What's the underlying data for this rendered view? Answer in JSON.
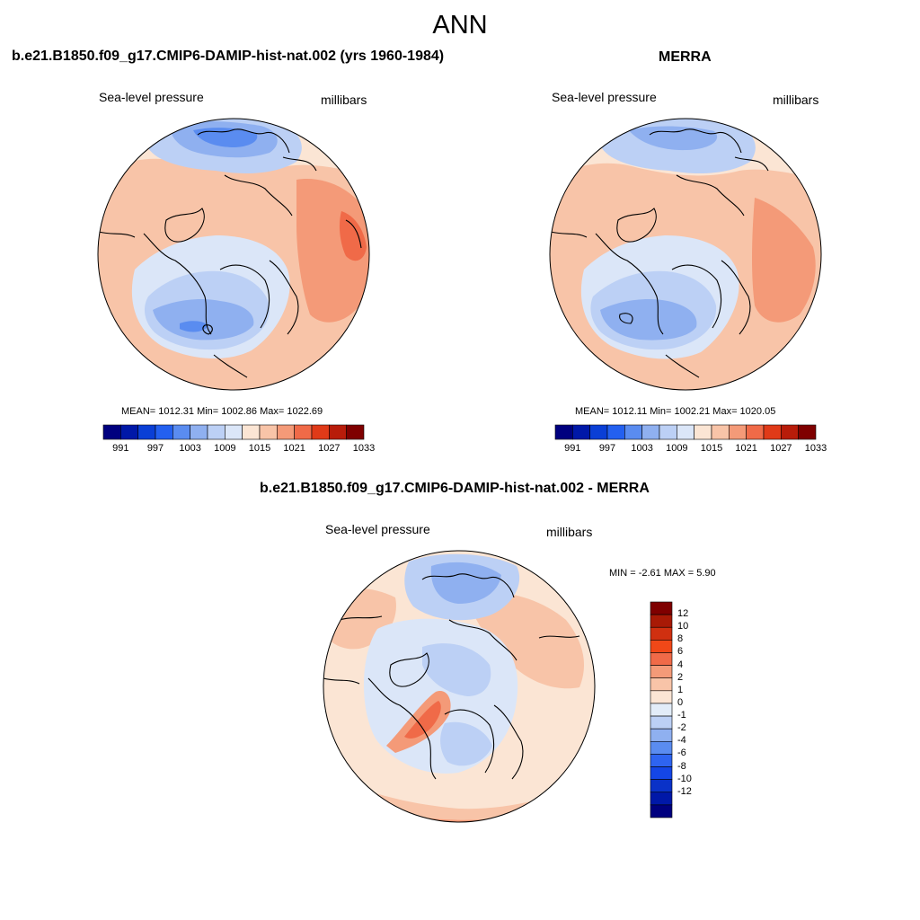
{
  "title": "ANN",
  "panels": [
    {
      "title": "b.e21.B1850.f09_g17.CMIP6-DAMIP-hist-nat.002 (yrs 1960-1984)",
      "left_label": "Sea-level pressure",
      "right_label": "millibars",
      "stats": "MEAN= 1012.31  Min= 1002.86  Max= 1022.69"
    },
    {
      "title": "MERRA",
      "left_label": "Sea-level pressure",
      "right_label": "millibars",
      "stats": "MEAN= 1012.11  Min= 1002.21  Max= 1020.05"
    },
    {
      "title": "b.e21.B1850.f09_g17.CMIP6-DAMIP-hist-nat.002 - MERRA",
      "left_label": "Sea-level pressure",
      "right_label": "millibars",
      "stats": "MIN =  -2.61 MAX =   5.90"
    }
  ],
  "colorbar_abs": {
    "colors": [
      "#00007f",
      "#0018a8",
      "#0a3fd6",
      "#2360f0",
      "#5a8cf0",
      "#8fb0f0",
      "#bcd0f5",
      "#dbe6f8",
      "#fbe5d4",
      "#f8c4a8",
      "#f49a78",
      "#f06a48",
      "#e03a18",
      "#b81c0a",
      "#7f0000"
    ],
    "tick_labels": [
      "991",
      "997",
      "1003",
      "1009",
      "1015",
      "1021",
      "1027",
      "1033"
    ]
  },
  "colorbar_diff": {
    "colors": [
      "#00007f",
      "#0018a8",
      "#0a32c8",
      "#1446e6",
      "#2e64f0",
      "#5a8cf0",
      "#8fb0f0",
      "#bcd0f5",
      "#e2ecf8",
      "#fbe5d4",
      "#f8c4a8",
      "#f49a78",
      "#f06a48",
      "#f04818",
      "#d03010",
      "#a81a06",
      "#7f0000"
    ],
    "tick_labels": [
      "12",
      "10",
      "8",
      "6",
      "4",
      "2",
      "1",
      "0",
      "-1",
      "-2",
      "-4",
      "-6",
      "-8",
      "-10",
      "-12"
    ]
  },
  "colors": {
    "land_outline": "#000000"
  }
}
